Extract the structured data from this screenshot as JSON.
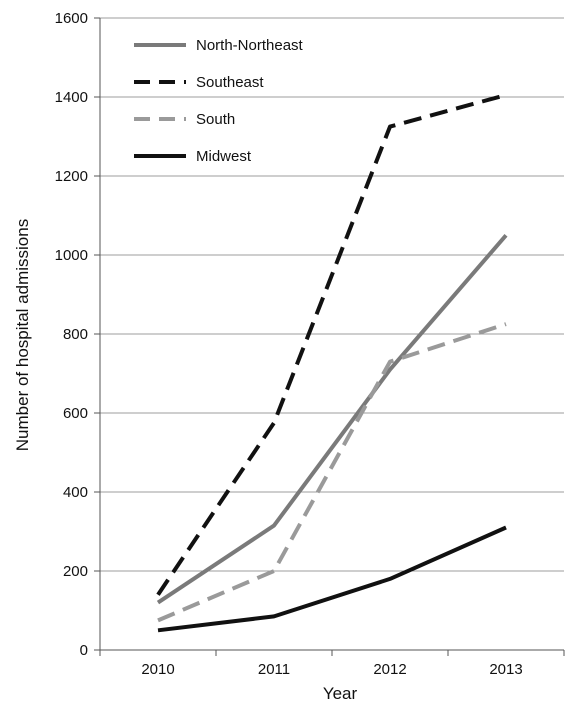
{
  "chart_data": {
    "type": "line",
    "title": "",
    "xlabel": "Year",
    "ylabel": "Number of hospital admissions",
    "categories": [
      "2010",
      "2011",
      "2012",
      "2013"
    ],
    "ylim": [
      0,
      1600
    ],
    "yticks": [
      0,
      200,
      400,
      600,
      800,
      1000,
      1200,
      1400,
      1600
    ],
    "grid": "horizontal",
    "legend_position": "top-left",
    "series": [
      {
        "name": "North-Northeast",
        "values": [
          120,
          315,
          710,
          1050
        ],
        "color": "#7a7a7a",
        "dash": "solid"
      },
      {
        "name": "Southeast",
        "values": [
          140,
          575,
          1325,
          1405
        ],
        "color": "#111111",
        "dash": "dashed"
      },
      {
        "name": "South",
        "values": [
          75,
          200,
          730,
          825
        ],
        "color": "#9a9a9a",
        "dash": "dashed"
      },
      {
        "name": "Midwest",
        "values": [
          50,
          85,
          180,
          310
        ],
        "color": "#111111",
        "dash": "solid"
      }
    ]
  }
}
